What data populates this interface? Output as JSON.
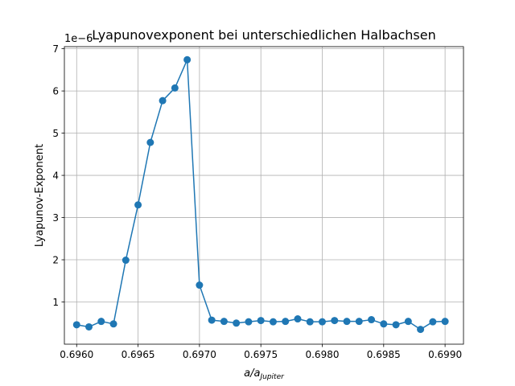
{
  "chart_data": {
    "type": "line",
    "title": "Lyapunovexponent bei unterschiedlichen Halbachsen",
    "xlabel_main": "a/a",
    "xlabel_sub": "Jupiter",
    "ylabel": "Lyapunov-Exponent",
    "y_offset_text": "1e−6",
    "xlim": [
      0.6959,
      0.69915
    ],
    "ylim": [
      0.0,
      7.05
    ],
    "x_ticks": [
      0.696,
      0.6965,
      0.697,
      0.6975,
      0.698,
      0.6985,
      0.699
    ],
    "x_tick_labels": [
      "0.6960",
      "0.6965",
      "0.6970",
      "0.6975",
      "0.6980",
      "0.6985",
      "0.6990"
    ],
    "y_ticks": [
      1,
      2,
      3,
      4,
      5,
      6,
      7
    ],
    "y_tick_labels": [
      "1",
      "2",
      "3",
      "4",
      "5",
      "6",
      "7"
    ],
    "grid": true,
    "series": [
      {
        "color": "#1f77b4",
        "marker": "circle",
        "x": [
          0.696,
          0.6961,
          0.6962,
          0.6963,
          0.6964,
          0.6965,
          0.6966,
          0.6967,
          0.6968,
          0.6969,
          0.697,
          0.6971,
          0.6972,
          0.6973,
          0.6974,
          0.6975,
          0.6976,
          0.6977,
          0.6978,
          0.6979,
          0.698,
          0.6981,
          0.6982,
          0.6983,
          0.6984,
          0.6985,
          0.6986,
          0.6987,
          0.6988,
          0.6989,
          0.699
        ],
        "values": [
          0.46,
          0.41,
          0.54,
          0.48,
          1.99,
          3.3,
          4.78,
          5.77,
          6.07,
          6.74,
          1.4,
          0.57,
          0.54,
          0.5,
          0.53,
          0.56,
          0.53,
          0.54,
          0.6,
          0.53,
          0.53,
          0.56,
          0.54,
          0.54,
          0.58,
          0.48,
          0.46,
          0.54,
          0.35,
          0.53,
          0.54
        ]
      }
    ]
  }
}
